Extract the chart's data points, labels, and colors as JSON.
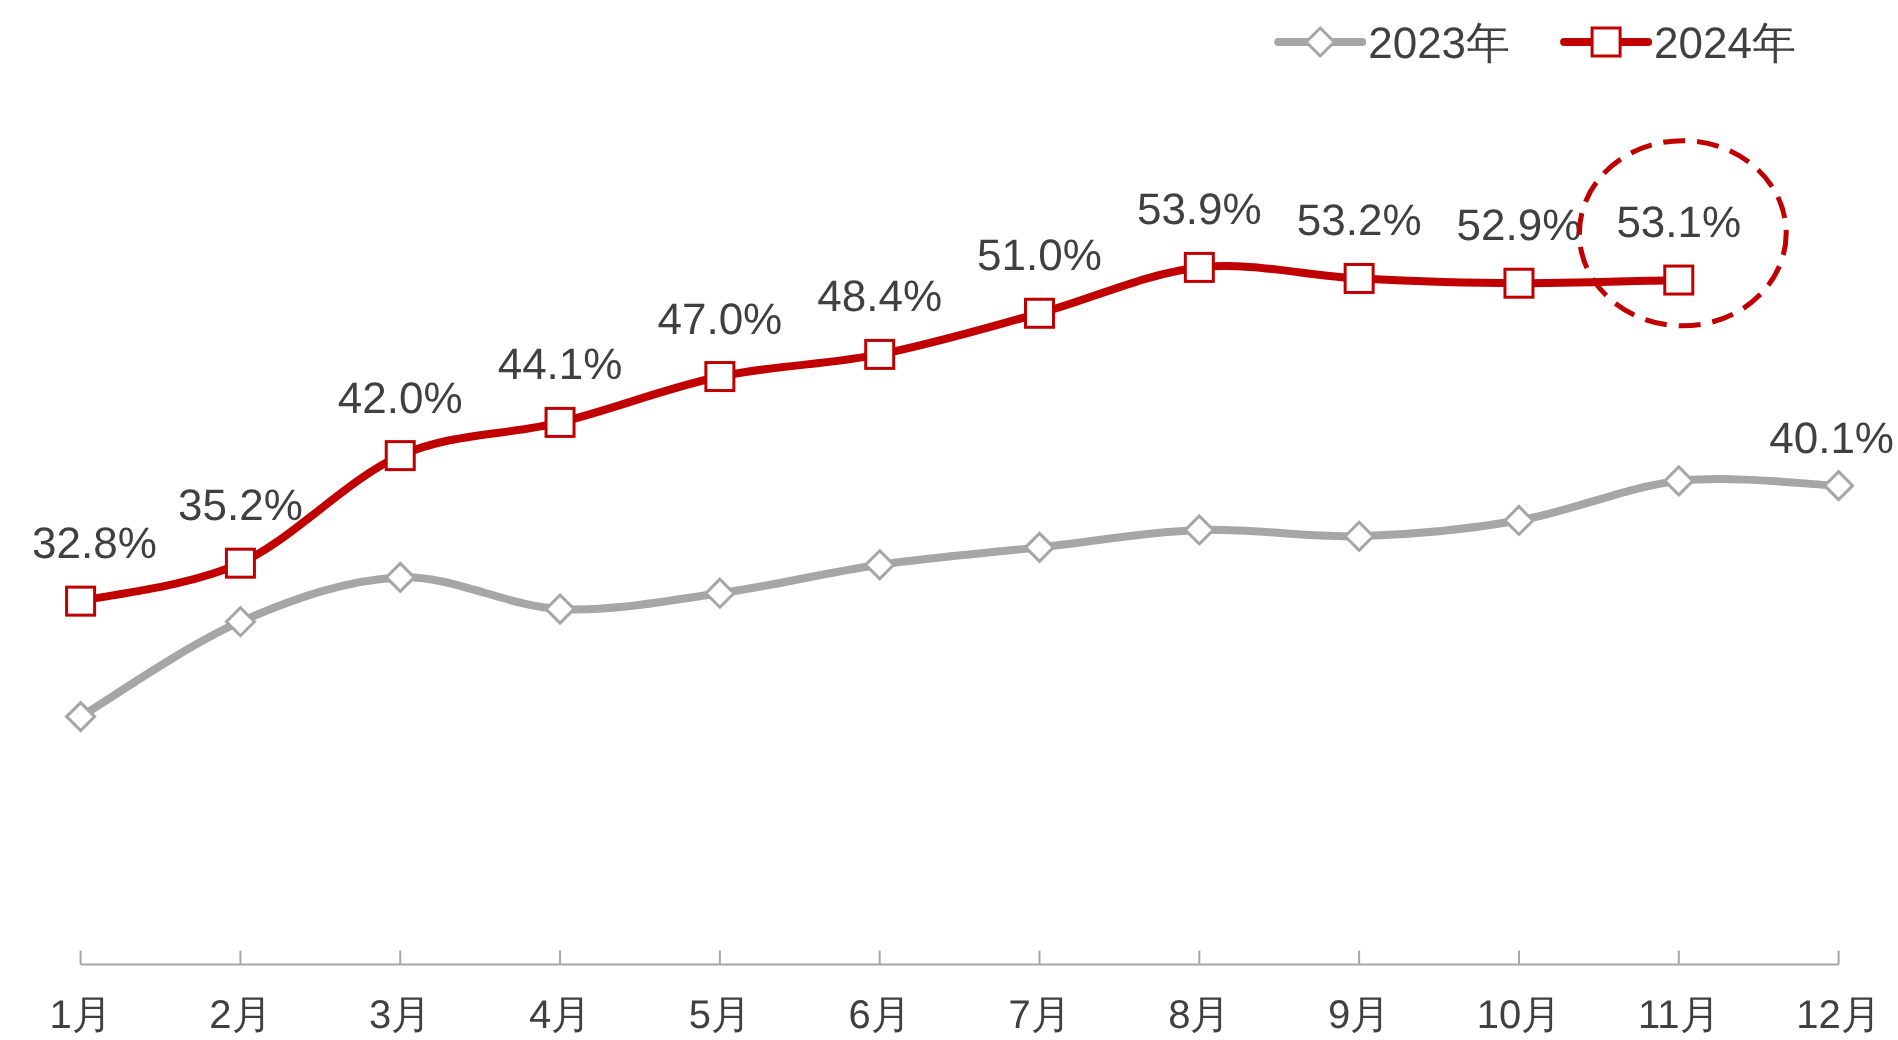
{
  "chart_data": {
    "type": "line",
    "categories": [
      "1月",
      "2月",
      "3月",
      "4月",
      "5月",
      "6月",
      "7月",
      "8月",
      "9月",
      "10月",
      "11月",
      "12月"
    ],
    "legend": "top right",
    "series": [
      {
        "name": "2023年",
        "color": "#a6a6a6",
        "marker": "diamond",
        "values": [
          25.5,
          31.5,
          34.3,
          32.3,
          33.3,
          35.1,
          36.2,
          37.3,
          36.9,
          37.9,
          40.4,
          40.1
        ],
        "value_labels": [
          null,
          null,
          null,
          null,
          null,
          null,
          null,
          null,
          null,
          null,
          null,
          "40.1%"
        ]
      },
      {
        "name": "2024年",
        "color": "#c00000",
        "marker": "square",
        "values": [
          32.8,
          35.2,
          42.0,
          44.1,
          47.0,
          48.4,
          51.0,
          53.9,
          53.2,
          52.9,
          53.1,
          null
        ],
        "value_labels": [
          "32.8%",
          "35.2%",
          "42.0%",
          "44.1%",
          "47.0%",
          "48.4%",
          "51.0%",
          "53.9%",
          "53.2%",
          "52.9%",
          "53.1%",
          null
        ]
      }
    ]
  }
}
